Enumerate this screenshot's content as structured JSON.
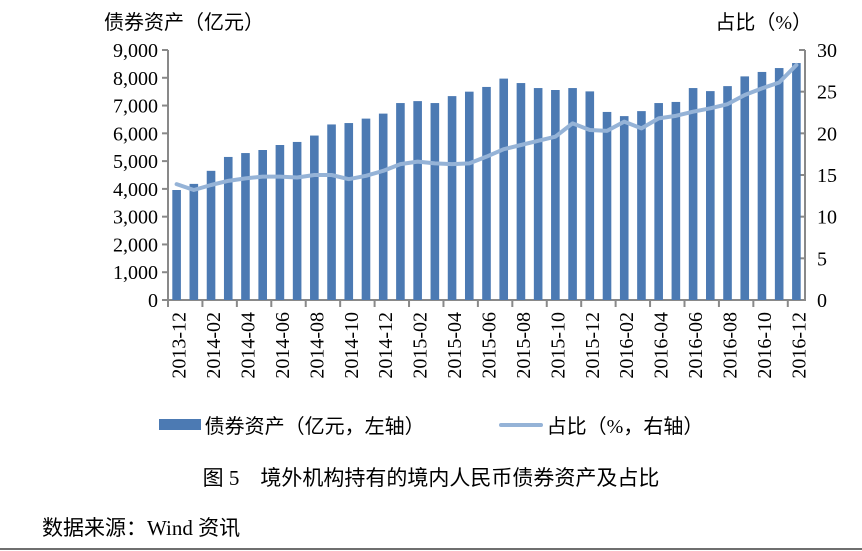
{
  "page": {
    "left_axis_title": "债券资产（亿元）",
    "right_axis_title": "占比（%）",
    "caption": "图 5　境外机构持有的境内人民币债券资产及占比",
    "source": "数据来源：Wind 资讯"
  },
  "legend": {
    "bar_label": "债券资产（亿元，左轴）",
    "line_label": "占比（%，右轴）"
  },
  "colors": {
    "bar": "#4c7ab3",
    "line": "#95b3d7",
    "axis": "#898989",
    "text": "#000000"
  },
  "chart_data": {
    "type": "bar",
    "title": "图 5　境外机构持有的境内人民币债券资产及占比",
    "xlabel": "",
    "ylabel_left": "债券资产（亿元）",
    "ylabel_right": "占比（%）",
    "grid": false,
    "legend_position": "bottom",
    "x_tick_every": 2,
    "categories": [
      "2013-12",
      "2014-01",
      "2014-02",
      "2014-03",
      "2014-04",
      "2014-05",
      "2014-06",
      "2014-07",
      "2014-08",
      "2014-09",
      "2014-10",
      "2014-11",
      "2014-12",
      "2015-01",
      "2015-02",
      "2015-03",
      "2015-04",
      "2015-05",
      "2015-06",
      "2015-07",
      "2015-08",
      "2015-09",
      "2015-10",
      "2015-11",
      "2015-12",
      "2016-01",
      "2016-02",
      "2016-03",
      "2016-04",
      "2016-05",
      "2016-06",
      "2016-07",
      "2016-08",
      "2016-09",
      "2016-10",
      "2016-11",
      "2016-12"
    ],
    "series": [
      {
        "name": "债券资产（亿元，左轴）",
        "type": "bar",
        "axis": "left",
        "values": [
          3960,
          4180,
          4650,
          5150,
          5290,
          5400,
          5580,
          5690,
          5920,
          6320,
          6370,
          6530,
          6710,
          7090,
          7160,
          7090,
          7340,
          7500,
          7670,
          7970,
          7810,
          7630,
          7560,
          7630,
          7510,
          6770,
          6620,
          6800,
          7090,
          7130,
          7630,
          7520,
          7700,
          8050,
          8210,
          8350,
          8530
        ]
      },
      {
        "name": "占比（%，右轴）",
        "type": "line",
        "axis": "right",
        "values": [
          13.9,
          13.2,
          13.8,
          14.3,
          14.6,
          14.8,
          14.8,
          14.7,
          15.0,
          15.0,
          14.5,
          14.9,
          15.5,
          16.3,
          16.6,
          16.4,
          16.3,
          16.4,
          17.2,
          18.1,
          18.6,
          19.1,
          19.6,
          21.2,
          20.4,
          20.3,
          21.4,
          20.6,
          21.8,
          22.1,
          22.6,
          23.0,
          23.5,
          24.6,
          25.4,
          26.1,
          28.2
        ]
      }
    ],
    "left_axis": {
      "min": 0,
      "max": 9000,
      "step": 1000,
      "tick_labels": [
        "0",
        "1,000",
        "2,000",
        "3,000",
        "4,000",
        "5,000",
        "6,000",
        "7,000",
        "8,000",
        "9,000"
      ]
    },
    "right_axis": {
      "min": 0,
      "max": 30,
      "step": 5,
      "tick_labels": [
        "0",
        "5",
        "10",
        "15",
        "20",
        "25",
        "30"
      ]
    }
  }
}
